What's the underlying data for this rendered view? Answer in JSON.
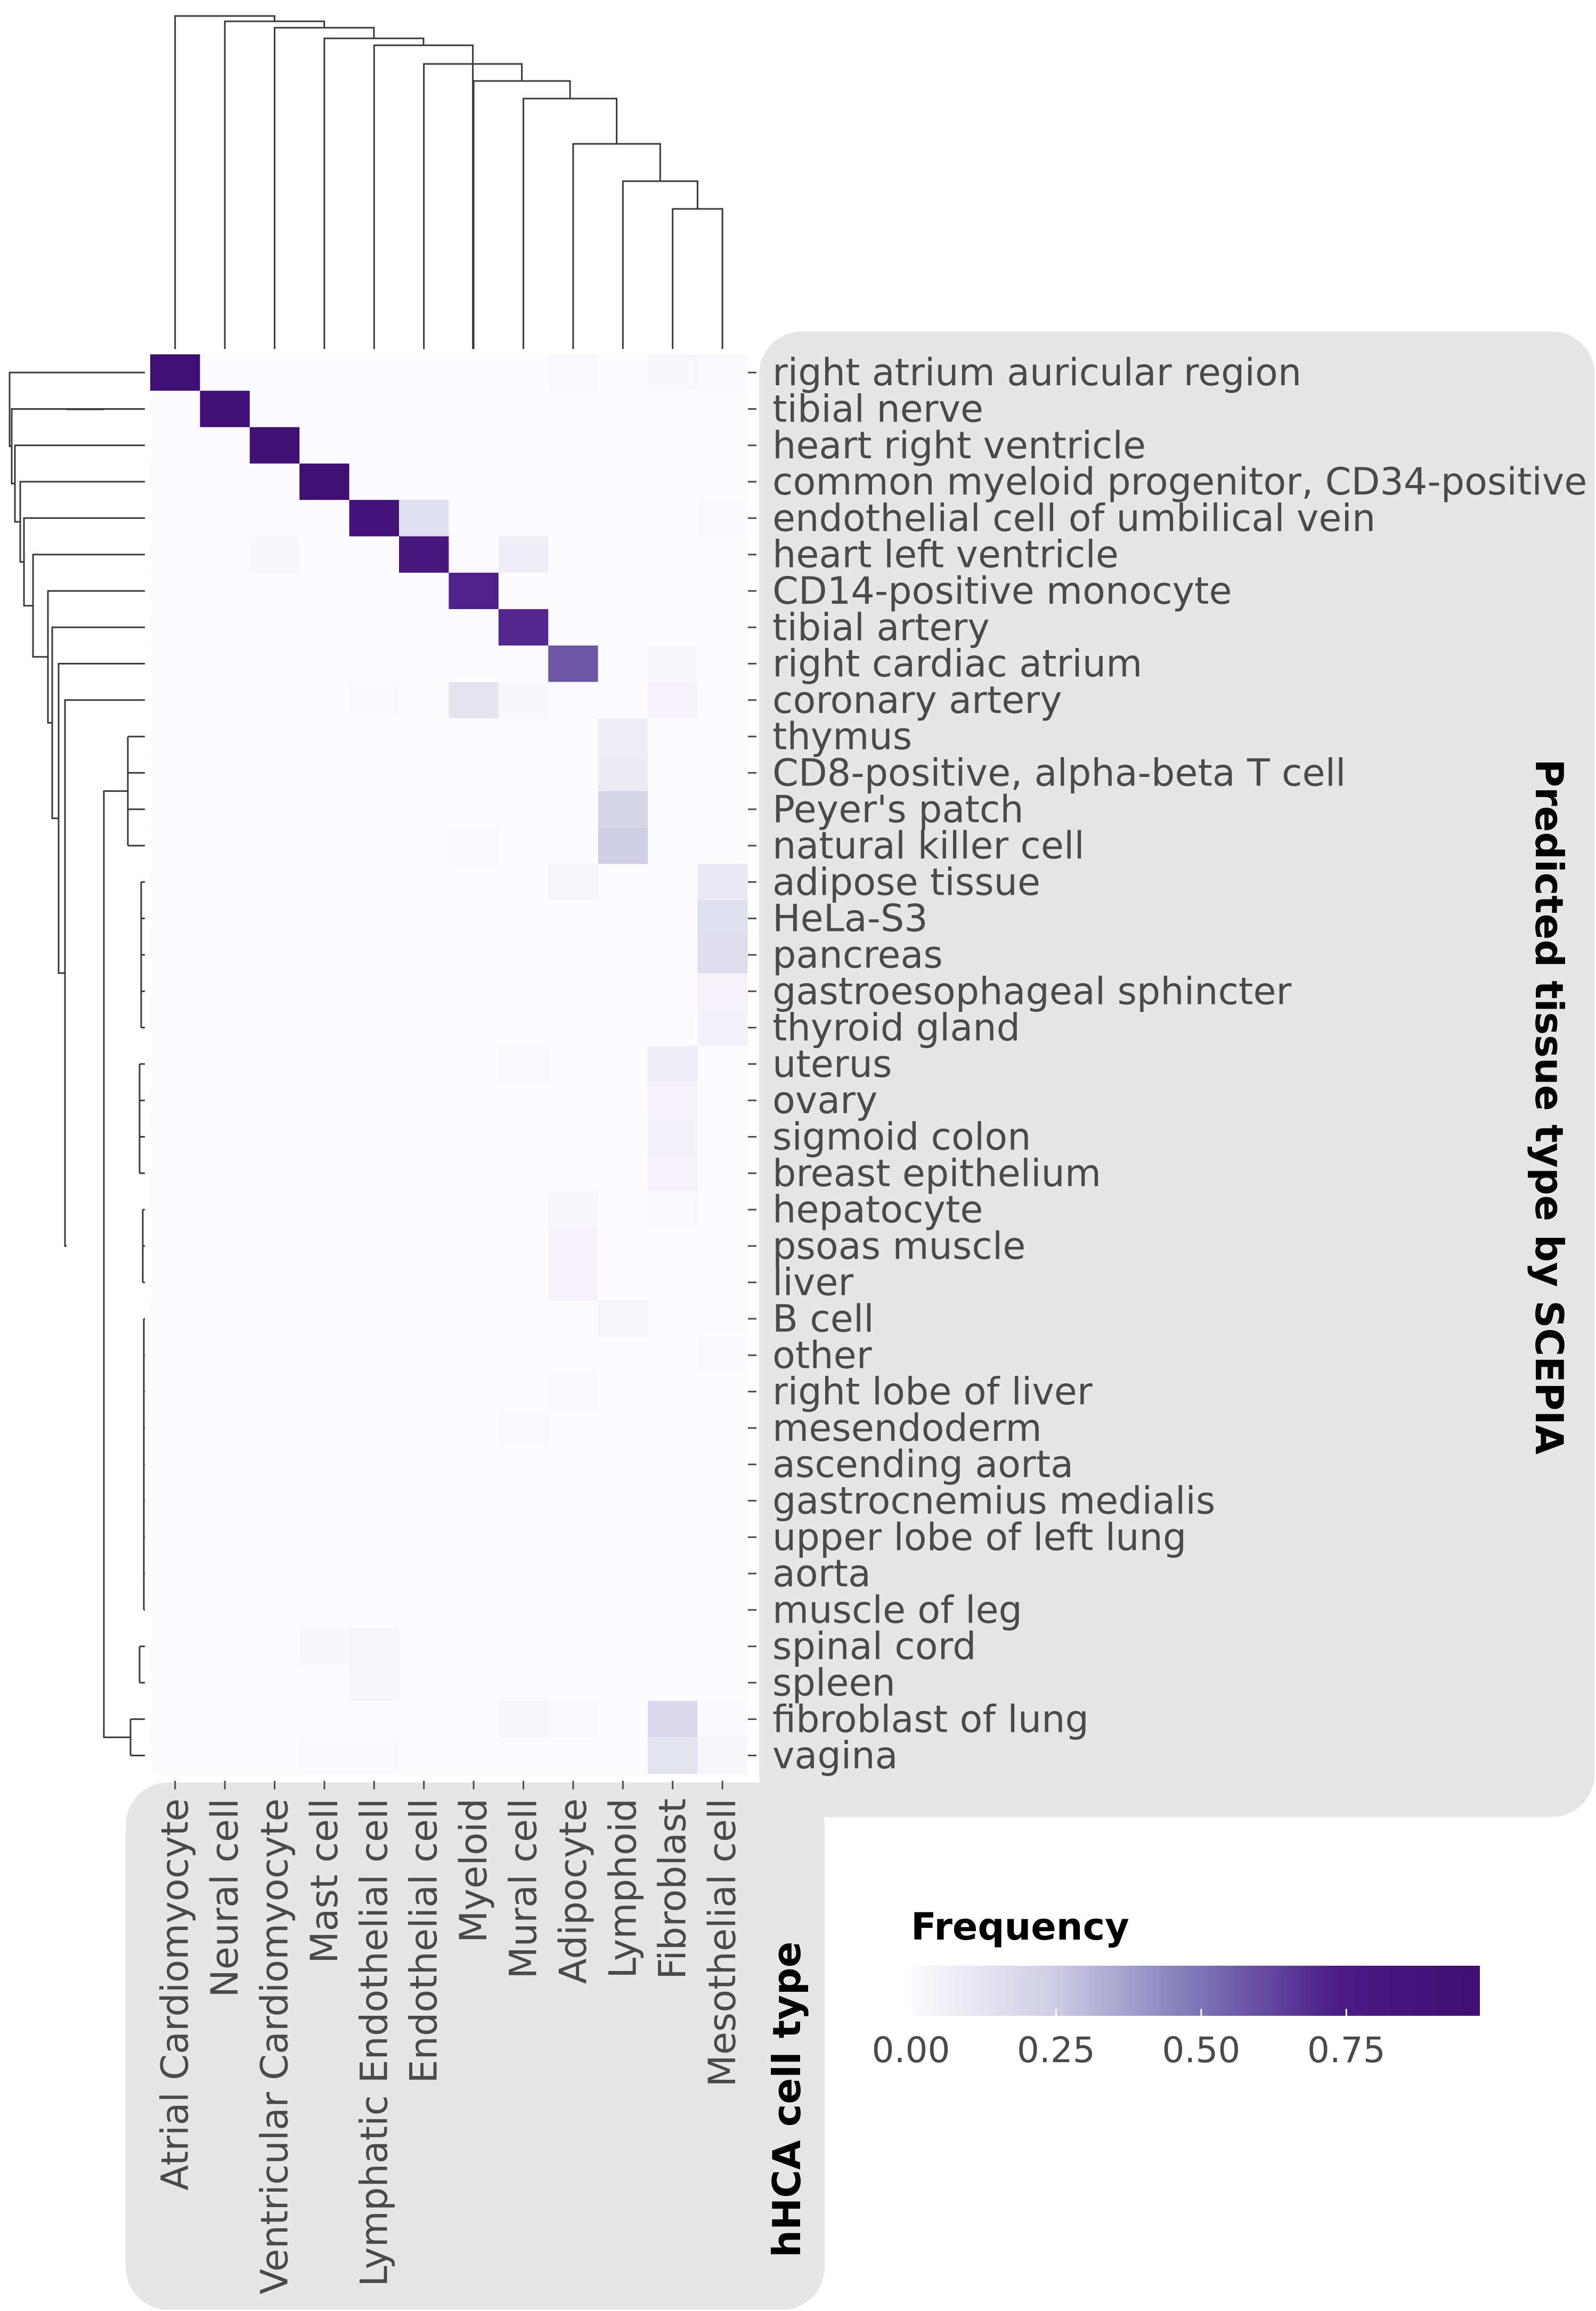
{
  "chart_data": {
    "type": "heatmap",
    "title": "",
    "xlabel": "hHCA cell type",
    "ylabel": "Predicted tissue type by SCEPIA",
    "x": [
      "Atrial Cardiomyocyte",
      "Neural cell",
      "Ventricular Cardiomyocyte",
      "Mast cell",
      "Lymphatic Endothelial cell",
      "Endothelial cell",
      "Myeloid",
      "Mural cell",
      "Adipocyte",
      "Lymphoid",
      "Fibroblast",
      "Mesothelial cell"
    ],
    "y": [
      "right atrium auricular region",
      "tibial nerve",
      "heart right ventricle",
      "common myeloid progenitor, CD34-positive",
      "endothelial cell of umbilical vein",
      "heart left ventricle",
      "CD14-positive monocyte",
      "tibial artery",
      "right cardiac atrium",
      "coronary artery",
      "thymus",
      "CD8-positive, alpha-beta T cell",
      "Peyer's patch",
      "natural killer cell",
      "adipose tissue",
      "HeLa-S3",
      "pancreas",
      "gastroesophageal sphincter",
      "thyroid gland",
      "uterus",
      "ovary",
      "sigmoid colon",
      "breast epithelium",
      "hepatocyte",
      "psoas muscle",
      "liver",
      "B cell",
      "other",
      "right lobe of liver",
      "mesendoderm",
      "ascending aorta",
      "gastrocnemius medialis",
      "upper lobe of left lung",
      "aorta",
      "muscle of leg",
      "spinal cord",
      "spleen",
      "fibroblast of lung",
      "vagina"
    ],
    "values": [
      [
        0.98,
        0,
        0,
        0,
        0,
        0,
        0,
        0,
        0.01,
        0,
        0.02,
        0.01
      ],
      [
        0,
        0.97,
        0,
        0,
        0,
        0,
        0,
        0,
        0,
        0,
        0,
        0
      ],
      [
        0,
        0,
        0.95,
        0,
        0,
        0,
        0,
        0,
        0,
        0,
        0,
        0
      ],
      [
        0,
        0,
        0,
        0.98,
        0,
        0,
        0,
        0,
        0,
        0,
        0,
        0
      ],
      [
        0,
        0,
        0,
        0,
        0.9,
        0.15,
        0,
        0,
        0,
        0,
        0,
        0.01
      ],
      [
        0,
        0,
        0.02,
        0,
        0,
        0.8,
        0,
        0.07,
        0,
        0,
        0,
        0
      ],
      [
        0,
        0,
        0,
        0,
        0,
        0,
        0.72,
        0,
        0,
        0,
        0,
        0
      ],
      [
        0,
        0,
        0,
        0,
        0,
        0,
        0,
        0.7,
        0,
        0,
        0,
        0
      ],
      [
        0,
        0,
        0,
        0,
        0,
        0,
        0,
        0,
        0.58,
        0,
        0.02,
        0
      ],
      [
        0,
        0,
        0,
        0,
        0.01,
        0,
        0.12,
        0.02,
        0,
        0,
        0.04,
        0
      ],
      [
        0,
        0,
        0,
        0,
        0,
        0,
        0,
        0,
        0,
        0.07,
        0,
        0
      ],
      [
        0,
        0,
        0,
        0,
        0,
        0,
        0,
        0,
        0,
        0.08,
        0,
        0
      ],
      [
        0,
        0,
        0,
        0,
        0,
        0,
        0,
        0,
        0,
        0.2,
        0,
        0
      ],
      [
        0,
        0,
        0,
        0,
        0,
        0,
        0.01,
        0,
        0,
        0.24,
        0,
        0
      ],
      [
        0,
        0,
        0,
        0,
        0,
        0,
        0,
        0,
        0.03,
        0,
        0,
        0.1
      ],
      [
        0,
        0,
        0,
        0,
        0,
        0,
        0,
        0,
        0,
        0,
        0,
        0.15
      ],
      [
        0,
        0,
        0,
        0,
        0,
        0,
        0,
        0,
        0,
        0,
        0,
        0.16
      ],
      [
        0,
        0,
        0,
        0,
        0,
        0,
        0,
        0,
        0,
        0,
        0,
        0.04
      ],
      [
        0,
        0,
        0,
        0,
        0,
        0,
        0,
        0,
        0,
        0,
        0,
        0.05
      ],
      [
        0,
        0,
        0,
        0,
        0,
        0,
        0,
        0.01,
        0,
        0,
        0.07,
        0
      ],
      [
        0,
        0,
        0,
        0,
        0,
        0,
        0,
        0,
        0,
        0,
        0.04,
        0
      ],
      [
        0,
        0,
        0,
        0,
        0,
        0,
        0,
        0,
        0,
        0,
        0.05,
        0
      ],
      [
        0,
        0,
        0,
        0,
        0,
        0,
        0,
        0,
        0,
        0,
        0.04,
        0
      ],
      [
        0,
        0,
        0,
        0,
        0,
        0,
        0,
        0,
        0.02,
        0,
        0.01,
        0
      ],
      [
        0,
        0,
        0,
        0,
        0,
        0,
        0,
        0,
        0.04,
        0,
        0,
        0
      ],
      [
        0,
        0,
        0,
        0,
        0,
        0,
        0,
        0,
        0.04,
        0,
        0,
        0
      ],
      [
        0,
        0,
        0,
        0,
        0,
        0,
        0,
        0,
        0,
        0.03,
        0,
        0
      ],
      [
        0,
        0,
        0,
        0,
        0,
        0,
        0,
        0,
        0,
        0,
        0,
        0.01
      ],
      [
        0,
        0,
        0,
        0,
        0,
        0,
        0,
        0,
        0.01,
        0,
        0,
        0
      ],
      [
        0,
        0,
        0,
        0,
        0,
        0,
        0,
        0.01,
        0,
        0,
        0,
        0
      ],
      [
        0,
        0,
        0,
        0,
        0,
        0,
        0,
        0,
        0,
        0,
        0,
        0
      ],
      [
        0,
        0,
        0,
        0,
        0,
        0,
        0,
        0,
        0,
        0,
        0,
        0
      ],
      [
        0,
        0,
        0,
        0,
        0,
        0,
        0,
        0,
        0,
        0,
        0,
        0
      ],
      [
        0,
        0,
        0,
        0,
        0,
        0,
        0,
        0,
        0,
        0,
        0,
        0
      ],
      [
        0,
        0,
        0,
        0,
        0,
        0,
        0,
        0,
        0,
        0,
        0,
        0
      ],
      [
        0,
        0,
        0,
        0.02,
        0.03,
        0,
        0,
        0,
        0,
        0,
        0,
        0
      ],
      [
        0,
        0,
        0,
        0,
        0.03,
        0,
        0,
        0,
        0,
        0,
        0,
        0
      ],
      [
        0,
        0,
        0,
        0,
        0,
        0,
        0,
        0.03,
        0.01,
        0,
        0.18,
        0.01
      ],
      [
        0,
        0,
        0,
        0.01,
        0.01,
        0,
        0,
        0,
        0,
        0,
        0.13,
        0.03
      ]
    ],
    "colorbar": {
      "title": "Frequency",
      "ticks": [
        "0.00",
        "0.25",
        "0.50",
        "0.75"
      ],
      "range": [
        0,
        0.98
      ],
      "colors": [
        "#fcfbfd",
        "#cfcde5",
        "#7e77b7",
        "#4b1b87",
        "#3f0f72"
      ]
    },
    "colors": {
      "panel_background": "#e6e6e6",
      "dendrogram": "#3a3a3a"
    },
    "dendrograms": [
      "columns",
      "rows"
    ],
    "legend_position": "bottom-right"
  }
}
